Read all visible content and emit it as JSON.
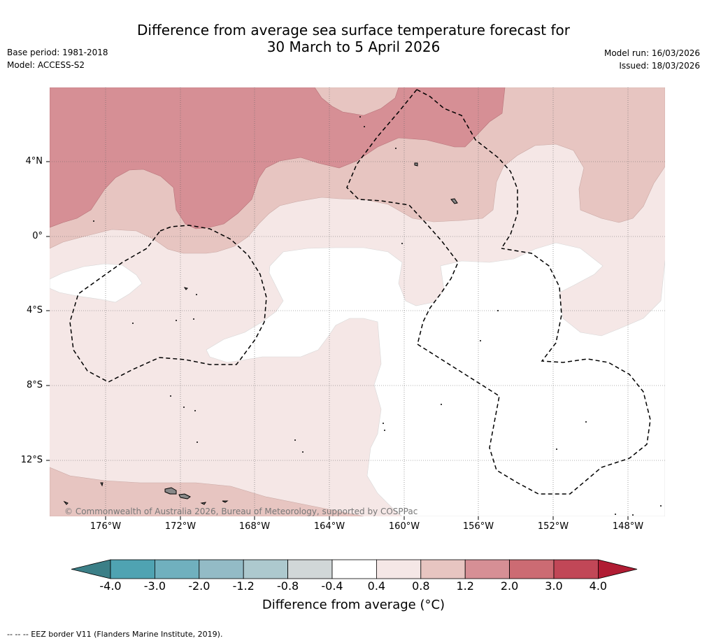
{
  "title": {
    "line1": "Difference from average sea surface temperature forecast for",
    "line2": "30 March to 5 April 2026"
  },
  "meta": {
    "base_period": "Base period: 1981-2018",
    "model": "Model: ACCESS-S2",
    "model_run": "Model run: 16/03/2026",
    "issued": "Issued: 18/03/2026"
  },
  "axes": {
    "lat_labels": [
      "4°N",
      "0°",
      "4°S",
      "8°S",
      "12°S"
    ],
    "lon_labels": [
      "176°W",
      "172°W",
      "168°W",
      "164°W",
      "160°W",
      "156°W",
      "152°W",
      "148°W"
    ]
  },
  "copyright": "© Commonwealth of Australia 2026, Bureau of Meteorology, supported by COSPPac",
  "colorbar": {
    "ticks": [
      "-4.0",
      "-3.0",
      "-2.0",
      "-1.2",
      "-0.8",
      "-0.4",
      "0.4",
      "0.8",
      "1.2",
      "2.0",
      "3.0",
      "4.0"
    ],
    "colors": [
      "#3b7f87",
      "#4fa3b2",
      "#70b0be",
      "#93bbc6",
      "#adc9ce",
      "#d1d7d8",
      "#ffffff",
      "#f5e7e6",
      "#e7c5c1",
      "#d68f95",
      "#cc6b73",
      "#c14757",
      "#b01c33"
    ],
    "title": "Difference from average (°C)"
  },
  "footnote": "-- -- -- EEZ border V11 (Flanders Marine Institute, 2019).",
  "colors": {
    "band_0_4_0_8": "#f5e7e6",
    "band_0_8_1_2": "#e7c5c1",
    "band_1_2_2_0": "#d68f95",
    "neutral": "#ffffff",
    "land": "#888888"
  }
}
